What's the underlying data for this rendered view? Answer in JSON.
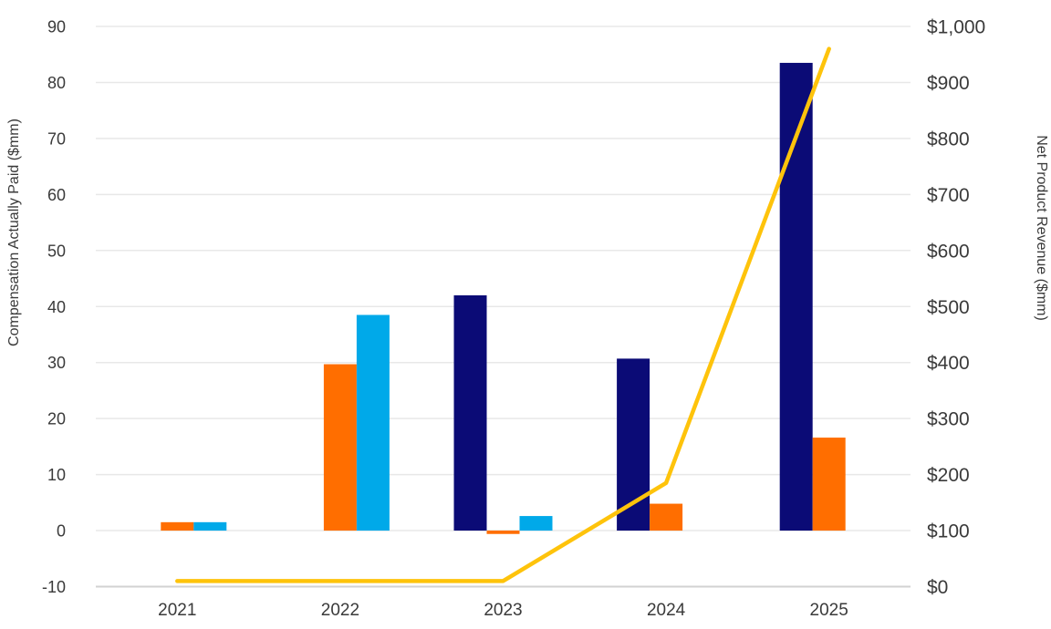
{
  "chart_data": {
    "type": "bar",
    "subtype": "combo-bar-line-dual-axis",
    "categories": [
      "2021",
      "2022",
      "2023",
      "2024",
      "2025"
    ],
    "bar_series": [
      {
        "name": "navy-bars",
        "color": "#0b0b76",
        "axis": "left",
        "values": [
          0,
          0,
          42,
          30.7,
          83.5
        ]
      },
      {
        "name": "orange-bars",
        "color": "#ff6e00",
        "axis": "left",
        "values": [
          1.5,
          29.7,
          -0.6,
          4.8,
          16.6
        ]
      },
      {
        "name": "blue-bars",
        "color": "#00a9e9",
        "axis": "left",
        "values": [
          1.5,
          38.5,
          2.6,
          0,
          0
        ]
      }
    ],
    "line_series": {
      "name": "net-product-revenue-line",
      "color": "#fec30b",
      "axis": "right",
      "values": [
        10,
        10,
        10,
        185,
        960
      ]
    },
    "left_axis": {
      "title": "Compensation Actually Paid ($mm)",
      "min": -10,
      "max": 90,
      "step": 10,
      "ticks": [
        "-10",
        "0",
        "10",
        "20",
        "30",
        "40",
        "50",
        "60",
        "70",
        "80",
        "90"
      ]
    },
    "right_axis": {
      "title": "Net Product Revenue ($mm)",
      "min": 0,
      "max": 1000,
      "step": 100,
      "ticks": [
        "$0",
        "$100",
        "$200",
        "$300",
        "$400",
        "$500",
        "$600",
        "$700",
        "$800",
        "$900",
        "$1,000"
      ]
    },
    "style": {
      "grid_on": true,
      "grid_color": "#e8e8e8",
      "axis_line_color": "#d2d2d2",
      "text_color": "#3a3a3a",
      "background": "#ffffff",
      "legend": "none"
    }
  }
}
